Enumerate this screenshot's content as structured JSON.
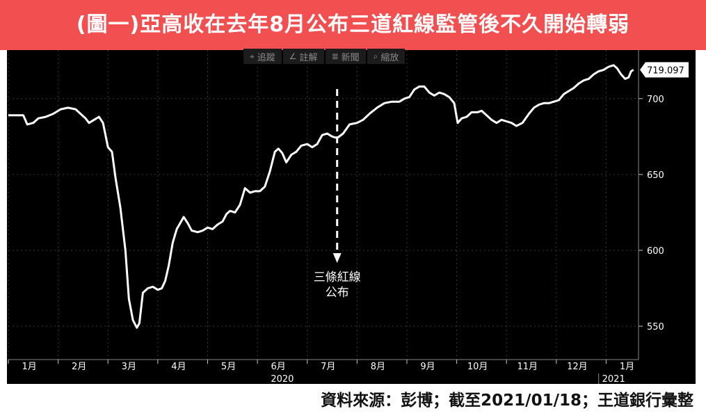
{
  "header": {
    "title": "(圖一)亞高收在去年8月公布三道紅線監管後不久開始轉弱"
  },
  "toolbar": [
    {
      "icon": "crosshair-icon",
      "glyph": "⌖",
      "label": "追蹤"
    },
    {
      "icon": "pencil-icon",
      "glyph": "∠",
      "label": "註解"
    },
    {
      "icon": "news-icon",
      "glyph": "≣",
      "label": "新聞"
    },
    {
      "icon": "zoom-icon",
      "glyph": "⌕",
      "label": "縮放"
    }
  ],
  "footer": {
    "source": "資料來源：彭博；截至2021/01/18；王道銀行彙整"
  },
  "colors": {
    "title_bg": "#f25050",
    "chart_bg": "#000000",
    "line": "#ffffff",
    "last_price_tag": "#ffffff"
  },
  "chart_data": {
    "type": "line",
    "title": "",
    "xlabel": "",
    "ylabel": "",
    "ylim": [
      528,
      732
    ],
    "xlim": [
      0,
      12.65
    ],
    "yticks": [
      550,
      600,
      650,
      700
    ],
    "month_ticks": [
      {
        "x": 0.0,
        "label": "1月"
      },
      {
        "x": 1.0,
        "label": "2月"
      },
      {
        "x": 2.0,
        "label": "3月"
      },
      {
        "x": 3.0,
        "label": "4月"
      },
      {
        "x": 4.0,
        "label": "5月"
      },
      {
        "x": 5.0,
        "label": "6月"
      },
      {
        "x": 6.0,
        "label": "7月"
      },
      {
        "x": 7.0,
        "label": "8月"
      },
      {
        "x": 8.0,
        "label": "9月"
      },
      {
        "x": 9.0,
        "label": "10月"
      },
      {
        "x": 10.0,
        "label": "11月"
      },
      {
        "x": 11.0,
        "label": "12月"
      },
      {
        "x": 12.0,
        "label": "1月"
      }
    ],
    "year_labels": [
      {
        "x": 5.5,
        "label": "2020"
      },
      {
        "x": 12.15,
        "label": "2021"
      }
    ],
    "last_value_label": "719.097",
    "annotation": {
      "x": 6.6,
      "lines": [
        "三條紅線",
        "公布"
      ]
    },
    "series": [
      {
        "values": [
          [
            0.0,
            689
          ],
          [
            0.15,
            689
          ],
          [
            0.3,
            689
          ],
          [
            0.38,
            683
          ],
          [
            0.5,
            684
          ],
          [
            0.6,
            687
          ],
          [
            0.75,
            688
          ],
          [
            0.9,
            690
          ],
          [
            1.05,
            693
          ],
          [
            1.2,
            694
          ],
          [
            1.35,
            693
          ],
          [
            1.45,
            690
          ],
          [
            1.55,
            687
          ],
          [
            1.62,
            684
          ],
          [
            1.72,
            686
          ],
          [
            1.82,
            688
          ],
          [
            1.9,
            684
          ],
          [
            2.0,
            668
          ],
          [
            2.08,
            665
          ],
          [
            2.15,
            648
          ],
          [
            2.25,
            628
          ],
          [
            2.35,
            600
          ],
          [
            2.42,
            568
          ],
          [
            2.5,
            554
          ],
          [
            2.58,
            549
          ],
          [
            2.63,
            552
          ],
          [
            2.7,
            572
          ],
          [
            2.8,
            575
          ],
          [
            2.9,
            576
          ],
          [
            3.0,
            574
          ],
          [
            3.08,
            575
          ],
          [
            3.15,
            580
          ],
          [
            3.22,
            590
          ],
          [
            3.3,
            605
          ],
          [
            3.38,
            614
          ],
          [
            3.45,
            618
          ],
          [
            3.52,
            622
          ],
          [
            3.6,
            618
          ],
          [
            3.68,
            613
          ],
          [
            3.8,
            612
          ],
          [
            3.9,
            613
          ],
          [
            4.0,
            615
          ],
          [
            4.1,
            614
          ],
          [
            4.2,
            617
          ],
          [
            4.3,
            619
          ],
          [
            4.38,
            624
          ],
          [
            4.45,
            626
          ],
          [
            4.55,
            625
          ],
          [
            4.65,
            630
          ],
          [
            4.75,
            641
          ],
          [
            4.85,
            638
          ],
          [
            4.95,
            639
          ],
          [
            5.05,
            639
          ],
          [
            5.15,
            642
          ],
          [
            5.25,
            652
          ],
          [
            5.35,
            665
          ],
          [
            5.42,
            667
          ],
          [
            5.5,
            664
          ],
          [
            5.58,
            658
          ],
          [
            5.68,
            663
          ],
          [
            5.78,
            665
          ],
          [
            5.88,
            669
          ],
          [
            6.0,
            670
          ],
          [
            6.1,
            668
          ],
          [
            6.2,
            670
          ],
          [
            6.3,
            676
          ],
          [
            6.4,
            677
          ],
          [
            6.5,
            675
          ],
          [
            6.6,
            674
          ],
          [
            6.72,
            677
          ],
          [
            6.85,
            683
          ],
          [
            7.0,
            684
          ],
          [
            7.12,
            686
          ],
          [
            7.25,
            690
          ],
          [
            7.4,
            694
          ],
          [
            7.55,
            697
          ],
          [
            7.7,
            698
          ],
          [
            7.85,
            698
          ],
          [
            7.95,
            700
          ],
          [
            8.05,
            701
          ],
          [
            8.15,
            706
          ],
          [
            8.25,
            708
          ],
          [
            8.35,
            708
          ],
          [
            8.45,
            704
          ],
          [
            8.55,
            702
          ],
          [
            8.65,
            704
          ],
          [
            8.75,
            703
          ],
          [
            8.85,
            701
          ],
          [
            8.95,
            697
          ],
          [
            9.02,
            684
          ],
          [
            9.1,
            687
          ],
          [
            9.2,
            688
          ],
          [
            9.3,
            691
          ],
          [
            9.42,
            691
          ],
          [
            9.5,
            692
          ],
          [
            9.6,
            689
          ],
          [
            9.7,
            686
          ],
          [
            9.8,
            684
          ],
          [
            9.9,
            686
          ],
          [
            10.0,
            685
          ],
          [
            10.1,
            684
          ],
          [
            10.2,
            682
          ],
          [
            10.32,
            684
          ],
          [
            10.45,
            690
          ],
          [
            10.55,
            694
          ],
          [
            10.65,
            696
          ],
          [
            10.75,
            697
          ],
          [
            10.85,
            697
          ],
          [
            10.95,
            698
          ],
          [
            11.05,
            699
          ],
          [
            11.15,
            703
          ],
          [
            11.25,
            705
          ],
          [
            11.35,
            707
          ],
          [
            11.45,
            710
          ],
          [
            11.55,
            712
          ],
          [
            11.65,
            713
          ],
          [
            11.75,
            716
          ],
          [
            11.85,
            718
          ],
          [
            11.95,
            719
          ],
          [
            12.05,
            721
          ],
          [
            12.15,
            722
          ],
          [
            12.22,
            720
          ],
          [
            12.3,
            716
          ],
          [
            12.38,
            713
          ],
          [
            12.45,
            714
          ],
          [
            12.5,
            718
          ],
          [
            12.55,
            719
          ]
        ]
      }
    ]
  }
}
